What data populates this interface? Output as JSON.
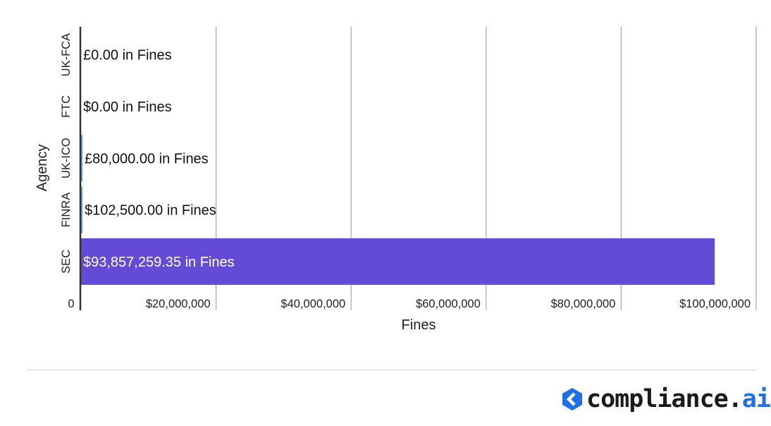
{
  "chart_data": {
    "type": "bar",
    "orientation": "horizontal",
    "categories": [
      "UK-FCA",
      "FTC",
      "UK-ICO",
      "FINRA",
      "SEC"
    ],
    "values": [
      0,
      0,
      80000,
      102500,
      93857259.35
    ],
    "data_labels": [
      "£0.00 in Fines",
      "$0.00 in Fines",
      "£80,000.00 in Fines",
      "$102,500.00 in Fines",
      "$93,857,259.35 in Fines"
    ],
    "bar_colors": [
      "#5ea3d8",
      "#5ea3d8",
      "#5ea3d8",
      "#5ea3d8",
      "#634bd6"
    ],
    "xlabel": "Fines",
    "ylabel": "Agency",
    "xlim": [
      0,
      100000000
    ],
    "xticks": [
      0,
      20000000,
      40000000,
      60000000,
      80000000,
      100000000
    ],
    "xtick_labels": [
      "0",
      "$20,000,000",
      "$40,000,000",
      "$60,000,000",
      "$80,000,000",
      "$100,000,000"
    ],
    "grid": "vertical",
    "legend": "none"
  },
  "brand": {
    "name_main": "compliance.",
    "name_accent": "ai",
    "accent_color": "#1f6fe5",
    "icon": "chevron-hexagon-icon"
  }
}
